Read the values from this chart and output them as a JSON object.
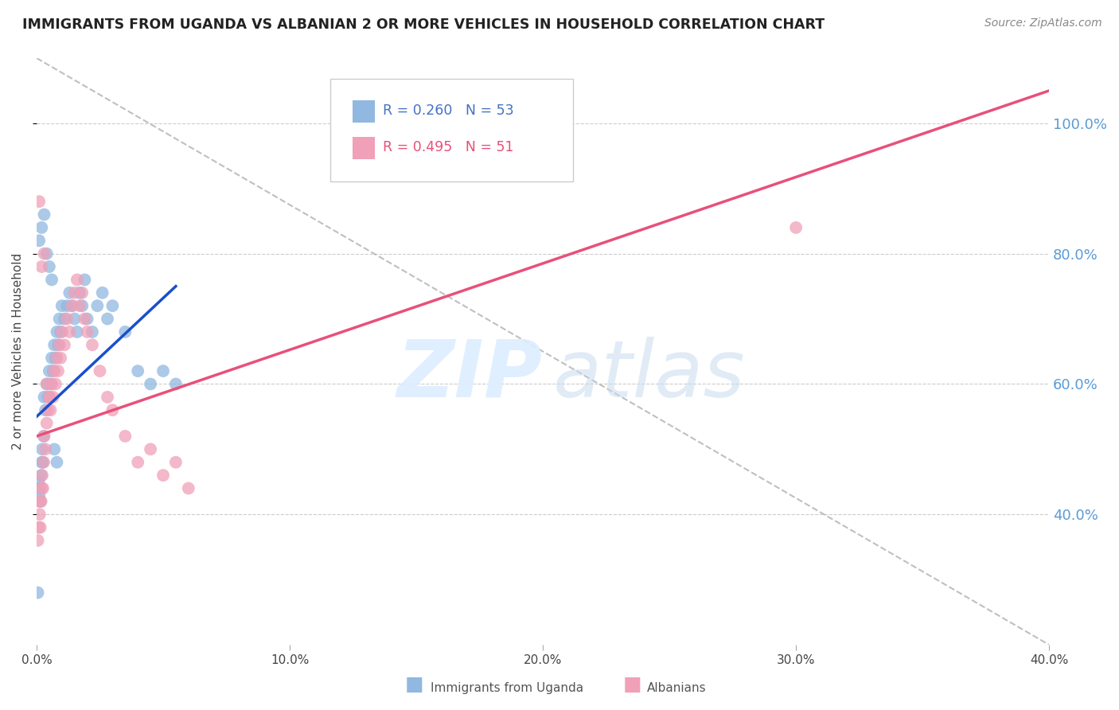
{
  "title": "IMMIGRANTS FROM UGANDA VS ALBANIAN 2 OR MORE VEHICLES IN HOUSEHOLD CORRELATION CHART",
  "source": "Source: ZipAtlas.com",
  "ylabel": "2 or more Vehicles in Household",
  "x_tick_labels": [
    "0.0%",
    "10.0%",
    "20.0%",
    "30.0%",
    "40.0%"
  ],
  "x_tick_vals": [
    0.0,
    10.0,
    20.0,
    30.0,
    40.0
  ],
  "y_tick_labels_right": [
    "40.0%",
    "60.0%",
    "80.0%",
    "100.0%"
  ],
  "y_tick_vals_right": [
    40.0,
    60.0,
    80.0,
    100.0
  ],
  "xlim": [
    0.0,
    40.0
  ],
  "ylim": [
    20.0,
    110.0
  ],
  "legend_R": [
    0.26,
    0.495
  ],
  "legend_N": [
    53,
    51
  ],
  "blue_color": "#90b8e0",
  "pink_color": "#f0a0b8",
  "blue_line_color": "#1a4fcc",
  "pink_line_color": "#e8507a",
  "right_axis_color": "#5b9bd5",
  "background_color": "#ffffff",
  "grid_color": "#cccccc",
  "uganda_x": [
    0.05,
    0.08,
    0.1,
    0.12,
    0.15,
    0.18,
    0.2,
    0.22,
    0.25,
    0.28,
    0.3,
    0.35,
    0.4,
    0.45,
    0.5,
    0.55,
    0.6,
    0.65,
    0.7,
    0.75,
    0.8,
    0.85,
    0.9,
    0.95,
    1.0,
    1.1,
    1.2,
    1.3,
    1.4,
    1.5,
    1.6,
    1.7,
    1.8,
    1.9,
    2.0,
    2.2,
    2.4,
    2.6,
    2.8,
    3.0,
    3.5,
    4.0,
    4.5,
    5.0,
    5.5,
    0.1,
    0.2,
    0.3,
    0.4,
    0.5,
    0.6,
    0.7,
    0.8
  ],
  "uganda_y": [
    28.0,
    45.0,
    43.0,
    44.0,
    42.0,
    46.0,
    48.0,
    50.0,
    48.0,
    52.0,
    58.0,
    56.0,
    60.0,
    58.0,
    62.0,
    60.0,
    64.0,
    62.0,
    66.0,
    64.0,
    68.0,
    66.0,
    70.0,
    68.0,
    72.0,
    70.0,
    72.0,
    74.0,
    72.0,
    70.0,
    68.0,
    74.0,
    72.0,
    76.0,
    70.0,
    68.0,
    72.0,
    74.0,
    70.0,
    72.0,
    68.0,
    62.0,
    60.0,
    62.0,
    60.0,
    82.0,
    84.0,
    86.0,
    80.0,
    78.0,
    76.0,
    50.0,
    48.0
  ],
  "albanian_x": [
    0.05,
    0.08,
    0.1,
    0.12,
    0.15,
    0.18,
    0.2,
    0.22,
    0.25,
    0.28,
    0.3,
    0.35,
    0.4,
    0.45,
    0.5,
    0.55,
    0.6,
    0.65,
    0.7,
    0.75,
    0.8,
    0.85,
    0.9,
    0.95,
    1.0,
    1.1,
    1.2,
    1.3,
    1.4,
    1.5,
    1.6,
    1.7,
    1.8,
    1.9,
    2.0,
    2.2,
    2.5,
    2.8,
    3.0,
    3.5,
    4.0,
    4.5,
    5.0,
    5.5,
    6.0,
    0.1,
    0.2,
    0.3,
    0.4,
    0.5,
    30.0
  ],
  "albanian_y": [
    36.0,
    38.0,
    42.0,
    40.0,
    38.0,
    42.0,
    44.0,
    46.0,
    44.0,
    48.0,
    52.0,
    50.0,
    54.0,
    56.0,
    58.0,
    56.0,
    60.0,
    58.0,
    62.0,
    60.0,
    64.0,
    62.0,
    66.0,
    64.0,
    68.0,
    66.0,
    70.0,
    68.0,
    72.0,
    74.0,
    76.0,
    72.0,
    74.0,
    70.0,
    68.0,
    66.0,
    62.0,
    58.0,
    56.0,
    52.0,
    48.0,
    50.0,
    46.0,
    48.0,
    44.0,
    88.0,
    78.0,
    80.0,
    60.0,
    58.0,
    84.0
  ],
  "blue_line_x0": 0.0,
  "blue_line_y0": 55.0,
  "blue_line_x1": 5.5,
  "blue_line_y1": 75.0,
  "pink_line_x0": 0.0,
  "pink_line_y0": 52.0,
  "pink_line_x1": 40.0,
  "pink_line_y1": 105.0,
  "dash_line_x0": 0.0,
  "dash_line_y0": 110.0,
  "dash_line_x1": 40.0,
  "dash_line_y1": 20.0
}
